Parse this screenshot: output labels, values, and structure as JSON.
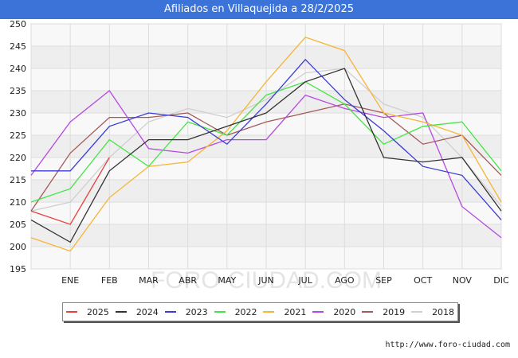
{
  "title": "Afiliados en Villaquejida a 28/2/2025",
  "source_url": "http://www.foro-ciudad.com",
  "watermark": "FORO-CIUDAD.COM",
  "chart_data": {
    "type": "line",
    "title": "Afiliados en Villaquejida a 28/2/2025",
    "x": [
      "",
      "ENE",
      "FEB",
      "MAR",
      "ABR",
      "MAY",
      "JUN",
      "JUL",
      "AGO",
      "SEP",
      "OCT",
      "NOV",
      "DIC"
    ],
    "ylim": [
      195,
      250
    ],
    "yticks": [
      195,
      200,
      205,
      210,
      215,
      220,
      225,
      230,
      235,
      240,
      245,
      250
    ],
    "grid": true,
    "legend_position": "bottom",
    "series": [
      {
        "name": "2025",
        "color": "#e8403c",
        "values": [
          208,
          205,
          220,
          null,
          null,
          null,
          null,
          null,
          null,
          null,
          null,
          null,
          null
        ]
      },
      {
        "name": "2024",
        "color": "#333333",
        "values": [
          206,
          201,
          217,
          224,
          224,
          227,
          230,
          237,
          240,
          220,
          219,
          220,
          208
        ]
      },
      {
        "name": "2023",
        "color": "#3b3bd9",
        "values": [
          217,
          217,
          227,
          230,
          229,
          223,
          232,
          242,
          233,
          226,
          218,
          216,
          206
        ]
      },
      {
        "name": "2022",
        "color": "#44e544",
        "values": [
          210,
          213,
          224,
          218,
          228,
          225,
          234,
          237,
          232,
          223,
          227,
          228,
          217
        ]
      },
      {
        "name": "2021",
        "color": "#f6b537",
        "values": [
          202,
          199,
          211,
          218,
          219,
          226,
          237,
          247,
          244,
          230,
          228,
          225,
          210
        ]
      },
      {
        "name": "2020",
        "color": "#b44ae0",
        "values": [
          216,
          228,
          235,
          222,
          221,
          224,
          224,
          234,
          231,
          229,
          230,
          209,
          202
        ]
      },
      {
        "name": "2019",
        "color": "#a35a5a",
        "values": [
          208,
          221,
          229,
          229,
          230,
          225,
          228,
          230,
          232,
          230,
          223,
          225,
          216
        ]
      },
      {
        "name": "2018",
        "color": "#cfcfcf",
        "values": [
          208,
          210,
          220,
          228,
          231,
          229,
          233,
          239,
          240,
          232,
          229,
          220,
          209
        ]
      }
    ]
  }
}
